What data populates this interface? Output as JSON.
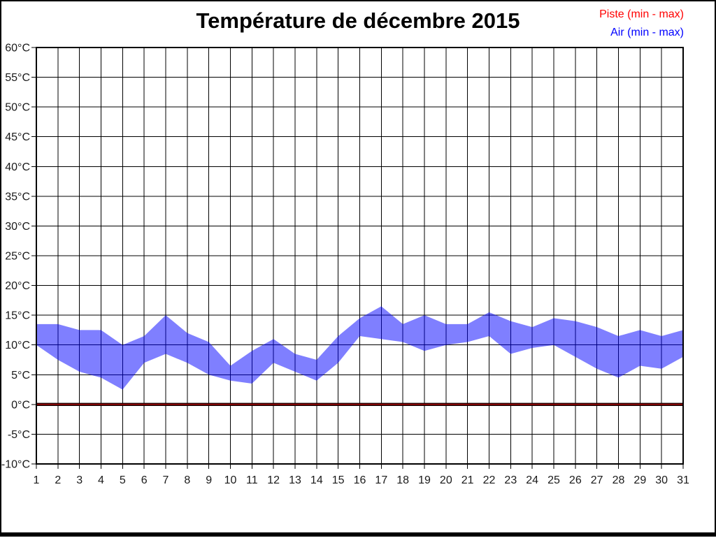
{
  "header": {
    "title": "Température de décembre 2015"
  },
  "legend": {
    "items": [
      {
        "label": "Piste (min - max)",
        "color": "#ff0000"
      },
      {
        "label": "Air (min - max)",
        "color": "#0000ff"
      }
    ]
  },
  "chart_data": {
    "type": "area",
    "title": "Température de décembre 2015",
    "xlabel": "",
    "ylabel": "",
    "x": [
      1,
      2,
      3,
      4,
      5,
      6,
      7,
      8,
      9,
      10,
      11,
      12,
      13,
      14,
      15,
      16,
      17,
      18,
      19,
      20,
      21,
      22,
      23,
      24,
      25,
      26,
      27,
      28,
      29,
      30,
      31
    ],
    "series": [
      {
        "name": "Piste (min - max)",
        "color": "#ff0000",
        "min": [
          0,
          0,
          0,
          0,
          0,
          0,
          0,
          0,
          0,
          0,
          0,
          0,
          0,
          0,
          0,
          0,
          0,
          0,
          0,
          0,
          0,
          0,
          0,
          0,
          0,
          0,
          0,
          0,
          0,
          0,
          0
        ],
        "max": [
          0,
          0,
          0,
          0,
          0,
          0,
          0,
          0,
          0,
          0,
          0,
          0,
          0,
          0,
          0,
          0,
          0,
          0,
          0,
          0,
          0,
          0,
          0,
          0,
          0,
          0,
          0,
          0,
          0,
          0,
          0
        ]
      },
      {
        "name": "Air (min - max)",
        "color": "#0000ff",
        "min": [
          10,
          7.5,
          5.5,
          4.5,
          2.5,
          7,
          8.5,
          7,
          5,
          4,
          3.5,
          7,
          5.5,
          4,
          7,
          11.5,
          11,
          10.5,
          9,
          10,
          10.5,
          11.5,
          8.5,
          9.5,
          10,
          8,
          6,
          4.5,
          6.5,
          6,
          8
        ],
        "max": [
          13.5,
          13.5,
          12.5,
          12.5,
          10,
          11.5,
          15,
          12,
          10.5,
          6.5,
          9,
          11,
          8.5,
          7.5,
          11.5,
          14.5,
          16.5,
          13.5,
          15,
          13.5,
          13.5,
          15.5,
          14,
          13,
          14.5,
          14,
          13,
          11.5,
          12.5,
          11.5,
          12.5
        ]
      }
    ],
    "ylim": [
      -10,
      60
    ],
    "y_tick_step": 5,
    "y_unit": "°C",
    "grid": true,
    "legend_position": "top-right"
  }
}
